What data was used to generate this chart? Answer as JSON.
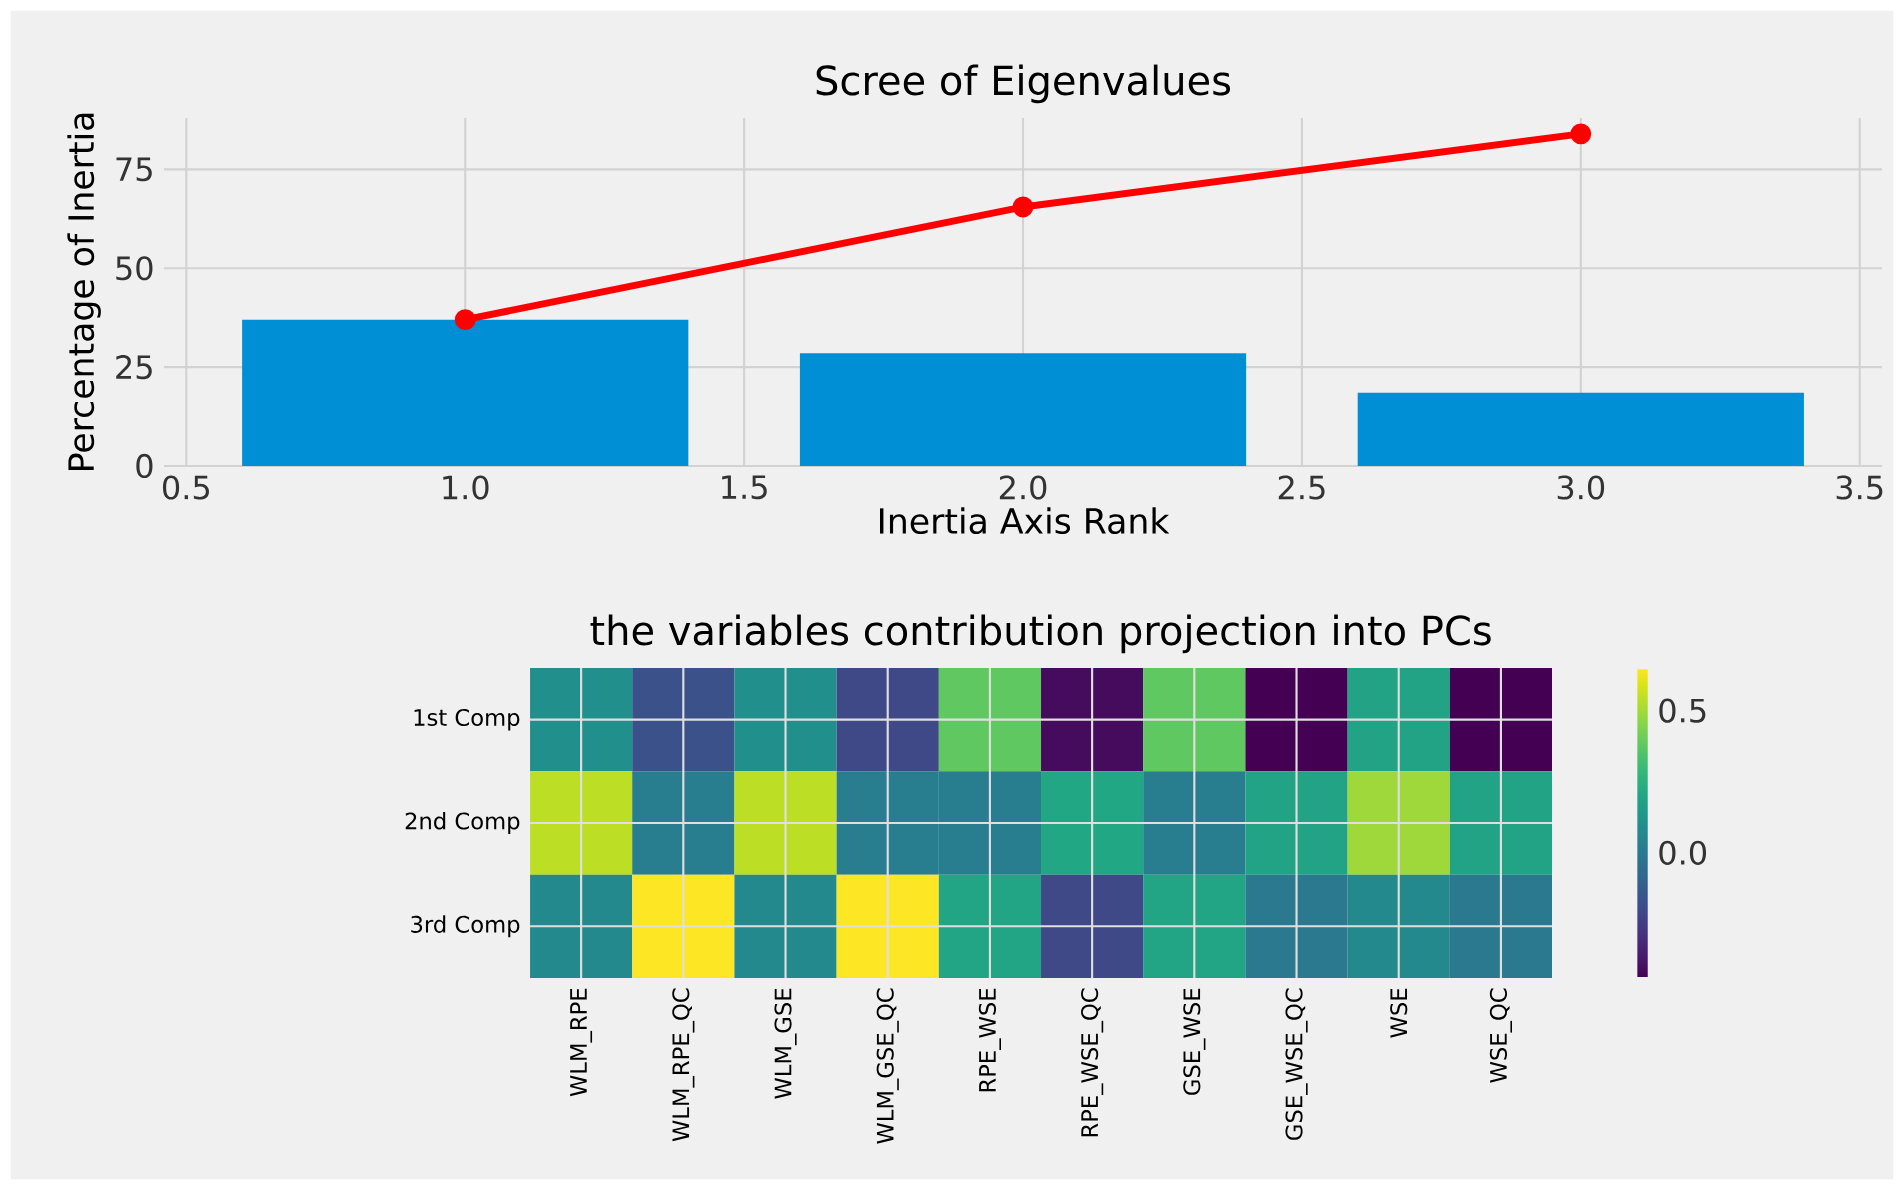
{
  "chart_data": [
    {
      "type": "bar",
      "title": "Scree of Eigenvalues",
      "xlabel": "Inertia Axis Rank",
      "ylabel": "Percentage of Inertia",
      "x": [
        1,
        2,
        3
      ],
      "series": [
        {
          "type": "bar",
          "color": "#008fd5",
          "values": [
            37,
            28.5,
            18.5
          ]
        },
        {
          "type": "line",
          "color": "#ff0000",
          "marker": "circle",
          "values": [
            37,
            65.5,
            84
          ]
        }
      ],
      "xlim": [
        0.46,
        3.54
      ],
      "ylim": [
        0,
        88
      ],
      "xticks": [
        0.5,
        {
          "value": 1,
          "label": "1.0"
        },
        1.5,
        {
          "value": 2,
          "label": "2.0"
        },
        2.5,
        {
          "value": 3,
          "label": "3.0"
        },
        3.5
      ],
      "yticks": [
        0,
        25,
        50,
        75
      ],
      "grid": true
    },
    {
      "type": "heatmap",
      "title": "the variables contribution projection into PCs",
      "categories": [
        "WLM_RPE",
        "WLM_RPE_QC",
        "WLM_GSE",
        "WLM_GSE_QC",
        "RPE_WSE",
        "RPE_WSE_QC",
        "GSE_WSE",
        "GSE_WSE_QC",
        "WSE",
        "WSE_QC"
      ],
      "y_categories": [
        "1st Comp",
        "2nd Comp",
        "3rd Comp"
      ],
      "cells": [
        [
          0.1,
          -0.17,
          0.1,
          -0.2,
          0.38,
          -0.41,
          0.38,
          -0.44,
          0.19,
          -0.44
        ],
        [
          0.54,
          0.02,
          0.54,
          0.02,
          0.02,
          0.21,
          0.02,
          0.19,
          0.49,
          0.19
        ],
        [
          0.07,
          0.65,
          0.07,
          0.65,
          0.2,
          -0.2,
          0.2,
          0.0,
          0.07,
          0.0
        ]
      ],
      "clim": [
        -0.44,
        0.65
      ],
      "cticks": [
        {
          "value": 0,
          "label": "0.0"
        },
        0.5
      ],
      "grid": true
    }
  ]
}
